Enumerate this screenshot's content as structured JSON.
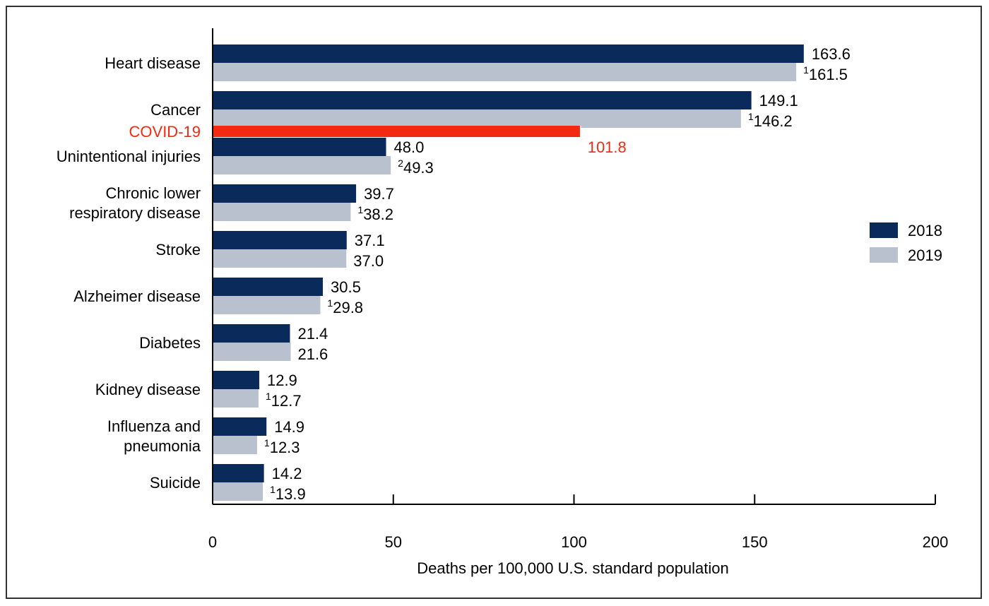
{
  "chart_data": {
    "type": "bar",
    "orientation": "horizontal",
    "xlabel": "Deaths per 100,000 U.S. standard population",
    "xlim": [
      0,
      200
    ],
    "xticks": [
      "0",
      "50",
      "100",
      "150",
      "200"
    ],
    "legend_position": "right",
    "series": [
      {
        "name": "2018",
        "color": "#0b2a5c"
      },
      {
        "name": "2019",
        "color": "#b8c1cd"
      }
    ],
    "categories": [
      {
        "label": [
          "Heart disease"
        ],
        "v2018": 163.6,
        "v2019": 161.5,
        "label2018": "163.6",
        "label2019": "161.5",
        "sup2019": "1"
      },
      {
        "label": [
          "Cancer"
        ],
        "v2018": 149.1,
        "v2019": 146.2,
        "label2018": "149.1",
        "label2019": "146.2",
        "sup2019": "1"
      },
      {
        "label": [
          "Unintentional injuries"
        ],
        "v2018": 48.0,
        "v2019": 49.3,
        "label2018": "48.0",
        "label2019": "49.3",
        "sup2019": "2"
      },
      {
        "label": [
          "Chronic lower ",
          "respiratory disease"
        ],
        "v2018": 39.7,
        "v2019": 38.2,
        "label2018": "39.7",
        "label2019": "38.2",
        "sup2019": "1"
      },
      {
        "label": [
          "Stroke"
        ],
        "v2018": 37.1,
        "v2019": 37.0,
        "label2018": "37.1",
        "label2019": "37.0",
        "sup2019": ""
      },
      {
        "label": [
          "Alzheimer disease"
        ],
        "v2018": 30.5,
        "v2019": 29.8,
        "label2018": "30.5",
        "label2019": "29.8",
        "sup2019": "1"
      },
      {
        "label": [
          "Diabetes"
        ],
        "v2018": 21.4,
        "v2019": 21.6,
        "label2018": "21.4",
        "label2019": "21.6",
        "sup2019": ""
      },
      {
        "label": [
          "Kidney disease"
        ],
        "v2018": 12.9,
        "v2019": 12.7,
        "label2018": "12.9",
        "label2019": "12.7",
        "sup2019": "1"
      },
      {
        "label": [
          "Influenza and",
          "pneumonia"
        ],
        "v2018": 14.9,
        "v2019": 12.3,
        "label2018": "14.9",
        "label2019": "12.3",
        "sup2019": "1"
      },
      {
        "label": [
          "Suicide"
        ],
        "v2018": 14.2,
        "v2019": 13.9,
        "label2018": "14.2",
        "label2019": "13.9",
        "sup2019": "1"
      }
    ],
    "highlight": {
      "label": "COVID-19",
      "value": 101.8,
      "value_label": "101.8",
      "color": "#f22a12"
    }
  }
}
